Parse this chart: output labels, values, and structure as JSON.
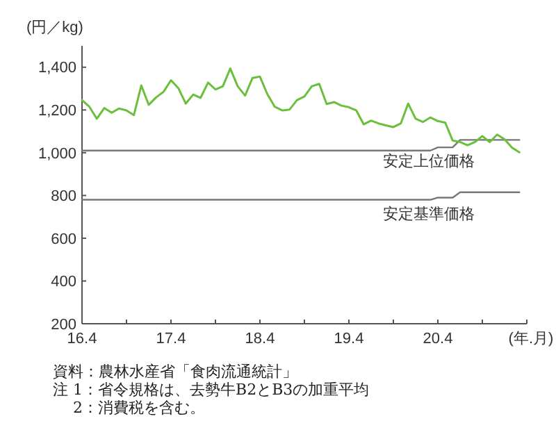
{
  "chart_data": {
    "type": "line",
    "ylabel": "(円／kg)",
    "xlabel": "(年.月)",
    "categories": [
      "16.4",
      null,
      null,
      null,
      null,
      null,
      null,
      null,
      null,
      null,
      null,
      null,
      "17.4",
      null,
      null,
      null,
      null,
      null,
      null,
      null,
      null,
      null,
      null,
      null,
      "18.4",
      null,
      null,
      null,
      null,
      null,
      null,
      null,
      null,
      null,
      null,
      null,
      "19.4",
      null,
      null,
      null,
      null,
      null,
      null,
      null,
      null,
      null,
      null,
      null,
      "20.4",
      null,
      null,
      null,
      null,
      null,
      null,
      null,
      null,
      null,
      null,
      null
    ],
    "ylim": [
      200,
      1500
    ],
    "yticks": [
      200,
      400,
      600,
      800,
      {
        "value": 1000,
        "label": "1,000"
      },
      {
        "value": 1200,
        "label": "1,200"
      },
      {
        "value": 1400,
        "label": "1,400"
      }
    ],
    "grid": false,
    "marker": "none",
    "line_style": "solid",
    "series": [
      {
        "color": "#6cbf3c",
        "values": [
          1246,
          1215,
          1159,
          1209,
          1187,
          1207,
          1198,
          1176,
          1315,
          1224,
          1259,
          1285,
          1339,
          1302,
          1230,
          1272,
          1257,
          1328,
          1296,
          1311,
          1394,
          1311,
          1267,
          1350,
          1356,
          1274,
          1215,
          1198,
          1202,
          1246,
          1263,
          1311,
          1322,
          1228,
          1237,
          1220,
          1213,
          1198,
          1133,
          1150,
          1137,
          1128,
          1120,
          1137,
          1230,
          1159,
          1144,
          1165,
          1148,
          1141,
          1057,
          1050,
          1035,
          1050,
          1078,
          1050,
          1085,
          1063,
          1024,
          1002
        ]
      },
      {
        "name": "安定上位価格",
        "color": "#777777",
        "values": [
          1010,
          1010,
          1010,
          1010,
          1010,
          1010,
          1010,
          1010,
          1010,
          1010,
          1010,
          1010,
          1010,
          1010,
          1010,
          1010,
          1010,
          1010,
          1010,
          1010,
          1010,
          1010,
          1010,
          1010,
          1010,
          1010,
          1010,
          1010,
          1010,
          1010,
          1010,
          1010,
          1010,
          1010,
          1010,
          1010,
          1010,
          1010,
          1010,
          1010,
          1010,
          1010,
          1010,
          1010,
          1010,
          1010,
          1010,
          1010,
          1025,
          1025,
          1025,
          1060,
          1060,
          1060,
          1060,
          1060,
          1060,
          1060,
          1060,
          1060
        ]
      },
      {
        "name": "安定基準価格",
        "color": "#777777",
        "values": [
          780,
          780,
          780,
          780,
          780,
          780,
          780,
          780,
          780,
          780,
          780,
          780,
          780,
          780,
          780,
          780,
          780,
          780,
          780,
          780,
          780,
          780,
          780,
          780,
          780,
          780,
          780,
          780,
          780,
          780,
          780,
          780,
          780,
          780,
          780,
          780,
          780,
          780,
          780,
          780,
          780,
          780,
          780,
          780,
          780,
          780,
          780,
          780,
          790,
          790,
          790,
          815,
          815,
          815,
          815,
          815,
          815,
          815,
          815,
          815
        ]
      }
    ],
    "annotations": [
      "資料：農林水産省「食肉流通統計」",
      "注 1：省令規格は、去勢牛B2とB3の加重平均",
      "　 2：消費税を含む。"
    ]
  }
}
